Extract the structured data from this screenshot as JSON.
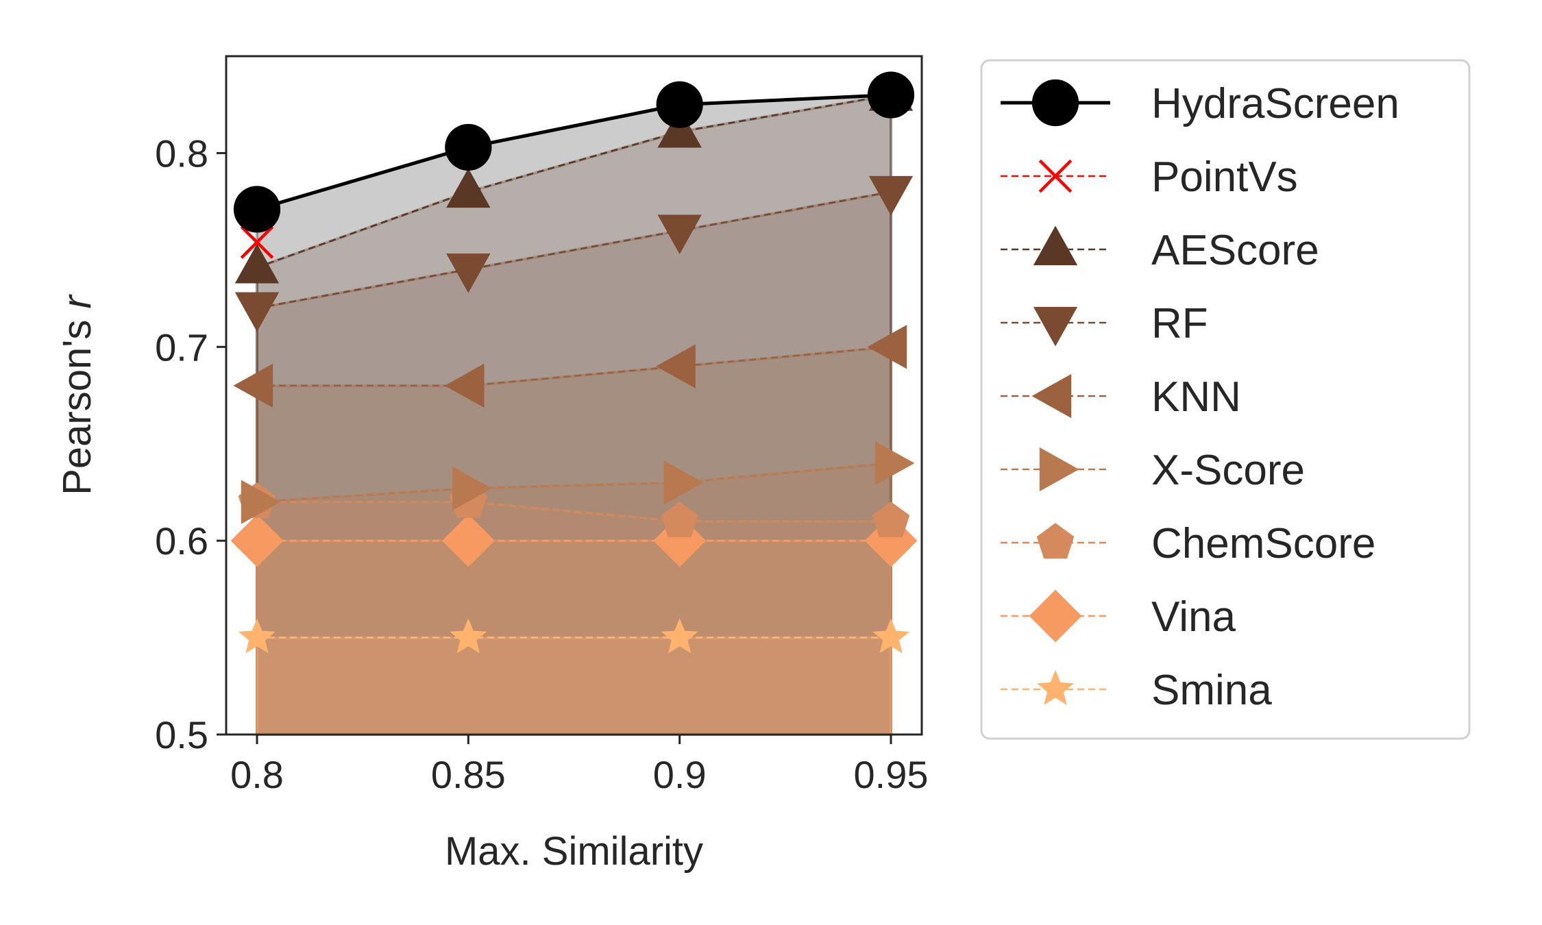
{
  "chart_data": {
    "type": "line",
    "title": "",
    "xlabel": "Max. Similarity",
    "ylabel_main": "Pearson's",
    "ylabel_italic": "r",
    "x": [
      0.8,
      0.85,
      0.9,
      0.95
    ],
    "x_tick_labels": [
      "0.8",
      "0.85",
      "0.9",
      "0.95"
    ],
    "xlim": [
      0.7925,
      0.9575
    ],
    "ylim": [
      0.5,
      0.85
    ],
    "y_ticks": [
      0.5,
      0.6,
      0.7,
      0.8
    ],
    "y_tick_labels": [
      "0.5",
      "0.6",
      "0.7",
      "0.8"
    ],
    "grid": false,
    "legend_position": "outside-right",
    "series": [
      {
        "name": "HydraScreen",
        "values": [
          0.771,
          0.803,
          0.825,
          0.83
        ],
        "color": "#000000",
        "marker": "circle",
        "dashed": false
      },
      {
        "name": "PointVs",
        "values": [
          0.754,
          null,
          null,
          null
        ],
        "color": "#ff0000",
        "marker": "x",
        "dashed": true
      },
      {
        "name": "AEScore",
        "values": [
          0.741,
          0.78,
          0.811,
          0.83
        ],
        "color": "#5a3825",
        "marker": "triangle-up",
        "dashed": true
      },
      {
        "name": "RF",
        "values": [
          0.72,
          0.74,
          0.76,
          0.78
        ],
        "color": "#7a4a31",
        "marker": "triangle-down",
        "dashed": true
      },
      {
        "name": "KNN",
        "values": [
          0.68,
          0.68,
          0.69,
          0.7
        ],
        "color": "#9c6240",
        "marker": "triangle-left",
        "dashed": true
      },
      {
        "name": "X-Score",
        "values": [
          0.62,
          0.627,
          0.63,
          0.64
        ],
        "color": "#b9794e",
        "marker": "triangle-right",
        "dashed": true
      },
      {
        "name": "ChemScore",
        "values": [
          0.62,
          0.62,
          0.61,
          0.61
        ],
        "color": "#d48a5c",
        "marker": "pentagon",
        "dashed": true
      },
      {
        "name": "Vina",
        "values": [
          0.6,
          0.6,
          0.6,
          0.6
        ],
        "color": "#f79a62",
        "marker": "diamond",
        "dashed": true
      },
      {
        "name": "Smina",
        "values": [
          0.55,
          0.55,
          0.55,
          0.55
        ],
        "color": "#ffb36c",
        "marker": "star",
        "dashed": true
      }
    ],
    "fills": [
      {
        "top_series": "HydraScreen",
        "color": "#000000",
        "opacity": 0.2
      },
      {
        "top_series": "AEScore",
        "color": "#5a3825",
        "opacity": 0.2
      },
      {
        "top_series": "RF",
        "color": "#7a4a31",
        "opacity": 0.2
      },
      {
        "top_series": "KNN",
        "color": "#9c6240",
        "opacity": 0.2
      },
      {
        "top_series": "X-Score",
        "color": "#b9794e",
        "opacity": 0.2
      },
      {
        "top_series": "ChemScore",
        "color": "#d48a5c",
        "opacity": 0.2
      },
      {
        "top_series": "Vina",
        "color": "#f79a62",
        "opacity": 0.2
      },
      {
        "top_series": "Smina",
        "color": "#ffb36c",
        "opacity": 0.2
      }
    ]
  }
}
